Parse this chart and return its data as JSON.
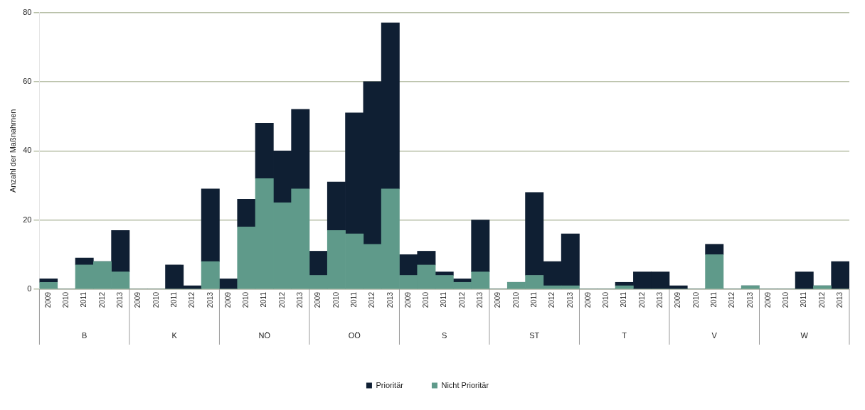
{
  "chart_data": {
    "type": "bar",
    "stacked": true,
    "ylabel": "Anzahl der Maßnahmen",
    "categories": [
      "2009",
      "2010",
      "2011",
      "2012",
      "2013",
      "2009",
      "2010",
      "2011",
      "2012",
      "2013",
      "2009",
      "2010",
      "2011",
      "2012",
      "2013",
      "2009",
      "2010",
      "2011",
      "2012",
      "2013",
      "2009",
      "2010",
      "2011",
      "2012",
      "2013",
      "2009",
      "2010",
      "2011",
      "2012",
      "2013",
      "2009",
      "2010",
      "2011",
      "2012",
      "2013",
      "2009",
      "2010",
      "2011",
      "2012",
      "2013",
      "2009",
      "2010",
      "2011",
      "2012",
      "2013"
    ],
    "annotations": [
      "B",
      "K",
      "NÖ",
      "OÖ",
      "S",
      "ST",
      "T",
      "V",
      "W"
    ],
    "series": [
      {
        "name": "Nicht Prioritär",
        "color": "#5f9a8a",
        "values": [
          2,
          0,
          7,
          8,
          5,
          0,
          0,
          0,
          0,
          8,
          0,
          18,
          32,
          25,
          29,
          4,
          17,
          16,
          13,
          29,
          4,
          7,
          4,
          2,
          5,
          0,
          2,
          4,
          1,
          1,
          0,
          0,
          1,
          0,
          0,
          0,
          0,
          10,
          0,
          1,
          0,
          0,
          0,
          1,
          0
        ]
      },
      {
        "name": "Prioritär",
        "color": "#0f1f33",
        "values": [
          1,
          0,
          2,
          0,
          12,
          0,
          0,
          7,
          1,
          21,
          3,
          8,
          16,
          15,
          23,
          7,
          14,
          35,
          47,
          48,
          6,
          4,
          1,
          1,
          15,
          0,
          0,
          24,
          7,
          15,
          0,
          0,
          1,
          5,
          5,
          1,
          0,
          3,
          0,
          0,
          0,
          0,
          5,
          0,
          8
        ]
      }
    ],
    "ylim": [
      0,
      80
    ],
    "yticks": [
      0,
      20,
      40,
      60,
      80
    ],
    "grid": "y",
    "legend": "bottom"
  }
}
